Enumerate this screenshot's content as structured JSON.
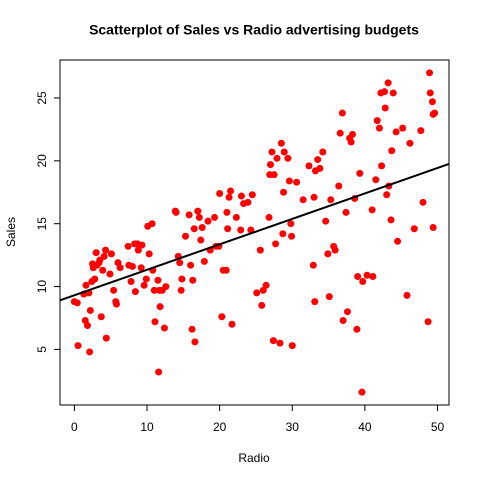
{
  "chart_data": {
    "type": "scatter",
    "title": "Scatterplot of Sales vs Radio advertising budgets",
    "x_label": "Radio",
    "y_label": "Sales",
    "color": "#ff0000",
    "line_color": "#000000",
    "xlim": [
      -1.98,
      51.58
    ],
    "ylim": [
      0.58,
      28.02
    ],
    "xticks": [
      0,
      10,
      20,
      30,
      40,
      50
    ],
    "yticks": [
      5,
      10,
      15,
      20,
      25
    ],
    "x": [
      0.0,
      0.4,
      0.5,
      1.3,
      1.5,
      1.6,
      1.8,
      2.0,
      2.1,
      2.2,
      2.4,
      2.5,
      2.6,
      2.8,
      3.0,
      3.1,
      3.4,
      3.5,
      3.7,
      3.9,
      4.1,
      4.3,
      4.4,
      4.9,
      5.1,
      5.4,
      5.7,
      5.8,
      6.0,
      6.3,
      7.4,
      7.5,
      7.8,
      8.0,
      8.3,
      8.4,
      8.7,
      8.8,
      9.2,
      9.3,
      9.6,
      9.9,
      10.1,
      10.3,
      10.7,
      10.8,
      11.0,
      11.1,
      11.5,
      11.6,
      11.7,
      11.8,
      12.1,
      12.4,
      12.6,
      13.9,
      14.0,
      14.3,
      14.5,
      14.7,
      14.8,
      15.3,
      15.8,
      16.0,
      16.2,
      16.3,
      16.5,
      16.6,
      17.0,
      17.2,
      17.4,
      17.6,
      17.9,
      18.4,
      18.7,
      19.3,
      19.5,
      19.9,
      20.0,
      20.3,
      20.5,
      20.9,
      21.0,
      21.1,
      21.3,
      21.5,
      21.7,
      22.3,
      22.9,
      23.0,
      23.3,
      23.9,
      24.3,
      24.5,
      25.1,
      25.6,
      25.8,
      26.0,
      26.4,
      26.8,
      26.9,
      27.0,
      27.2,
      27.4,
      27.5,
      27.7,
      27.9,
      28.3,
      28.5,
      28.7,
      28.8,
      28.9,
      29.4,
      29.6,
      29.8,
      29.9,
      30.0,
      30.6,
      31.5,
      32.3,
      32.9,
      33.0,
      33.1,
      33.2,
      33.5,
      33.8,
      34.2,
      34.6,
      34.9,
      35.1,
      35.3,
      35.7,
      35.9,
      36.4,
      36.6,
      36.9,
      37.0,
      37.4,
      37.6,
      37.9,
      38.1,
      38.3,
      38.6,
      38.9,
      39.0,
      39.3,
      39.6,
      39.7,
      40.3,
      41.0,
      41.1,
      41.5,
      41.7,
      42.0,
      42.2,
      42.3,
      42.7,
      42.8,
      43.0,
      43.2,
      43.3,
      43.6,
      43.7,
      43.9,
      44.3,
      44.5,
      45.2,
      45.8,
      46.2,
      46.8,
      47.7,
      48.0,
      48.7,
      48.9,
      49.0,
      49.3,
      49.4,
      49.6,
      49.4
    ],
    "values": [
      8.8,
      8.7,
      5.3,
      9.4,
      7.3,
      10.1,
      6.9,
      9.5,
      4.8,
      8.1,
      10.4,
      11.8,
      11.5,
      10.6,
      12.7,
      11.7,
      11.9,
      12.1,
      7.6,
      11.3,
      12.4,
      12.9,
      5.9,
      11.0,
      12.6,
      9.7,
      8.8,
      8.6,
      11.9,
      11.5,
      13.2,
      11.7,
      10.4,
      11.6,
      13.4,
      9.6,
      13.4,
      12.9,
      11.5,
      13.3,
      10.1,
      10.6,
      14.8,
      12.6,
      15.0,
      11.3,
      9.7,
      7.2,
      10.5,
      3.2,
      9.7,
      8.4,
      9.7,
      6.7,
      10.0,
      16.0,
      15.9,
      12.4,
      11.9,
      9.7,
      10.6,
      14.0,
      15.7,
      11.7,
      6.6,
      10.5,
      14.6,
      5.6,
      16.0,
      15.5,
      13.7,
      14.7,
      12.0,
      15.2,
      12.9,
      15.5,
      13.2,
      13.2,
      17.4,
      7.6,
      11.3,
      11.3,
      15.9,
      14.6,
      17.1,
      17.6,
      7.0,
      15.5,
      14.5,
      17.2,
      16.6,
      16.7,
      14.5,
      17.3,
      9.5,
      12.9,
      8.5,
      9.7,
      10.1,
      15.5,
      18.9,
      19.7,
      20.7,
      5.7,
      18.9,
      13.4,
      20.2,
      5.5,
      21.4,
      14.2,
      17.5,
      20.7,
      20.2,
      18.4,
      15.0,
      14.0,
      5.3,
      18.3,
      16.9,
      19.6,
      11.7,
      17.1,
      8.8,
      19.2,
      20.1,
      19.4,
      20.7,
      15.2,
      12.6,
      9.2,
      16.9,
      13.2,
      12.9,
      18.0,
      22.2,
      23.8,
      7.3,
      15.9,
      8.0,
      21.8,
      21.5,
      22.1,
      17.0,
      6.6,
      10.8,
      19.0,
      1.6,
      10.4,
      10.9,
      16.1,
      10.8,
      18.5,
      23.2,
      22.6,
      25.4,
      19.6,
      25.5,
      24.2,
      17.3,
      26.2,
      18.0,
      15.3,
      20.8,
      25.4,
      22.3,
      13.6,
      22.6,
      9.3,
      21.4,
      14.6,
      22.4,
      16.7,
      7.2,
      27.0,
      25.4,
      24.7,
      14.7,
      23.8,
      23.7
    ],
    "regression": {
      "intercept": 9.31,
      "slope": 0.2025
    }
  }
}
